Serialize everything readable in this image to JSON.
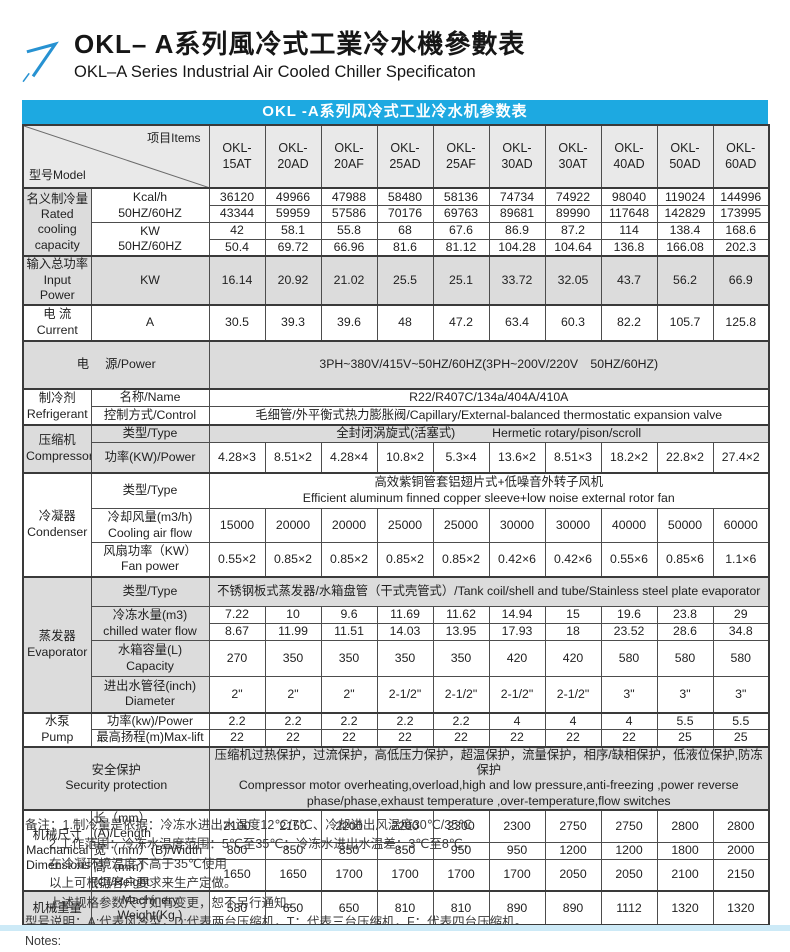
{
  "page": {
    "title_zh": "OKL– A系列風冷式工業冷水機參數表",
    "title_en": "OKL–A Series Industrial Air Cooled Chiller Specificaton",
    "accent_blue": "#1da9e1",
    "gray_cell": "#dcdcdc"
  },
  "table": {
    "caption": "OKL -A系列风冷式工业冷水机参数表",
    "corner": {
      "model": "型号Model",
      "items": "项目Items"
    },
    "models": [
      "OKL-\n15AT",
      "OKL-\n20AD",
      "OKL-\n20AF",
      "OKL-\n25AD",
      "OKL-\n25AF",
      "OKL-\n30AD",
      "OKL-\n30AT",
      "OKL-\n40AD",
      "OKL-\n50AD",
      "OKL-\n60AD"
    ],
    "rows": {
      "rated": {
        "label": "名义制冷量\nRated\ncooling\ncapacity",
        "kcal_label": "Kcal/h\n50HZ/60HZ",
        "kcal_50": [
          "36120",
          "49966",
          "47988",
          "58480",
          "58136",
          "74734",
          "74922",
          "98040",
          "119024",
          "144996"
        ],
        "kcal_60": [
          "43344",
          "59959",
          "57586",
          "70176",
          "69763",
          "89681",
          "89990",
          "117648",
          "142829",
          "173995"
        ],
        "kw_label": "KW\n50HZ/60HZ",
        "kw_50": [
          "42",
          "58.1",
          "55.8",
          "68",
          "67.6",
          "86.9",
          "87.2",
          "114",
          "138.4",
          "168.6"
        ],
        "kw_60": [
          "50.4",
          "69.72",
          "66.96",
          "81.6",
          "81.12",
          "104.28",
          "104.64",
          "136.8",
          "166.08",
          "202.3"
        ]
      },
      "input_power": {
        "label": "输入总功率\nInput Power",
        "unit": "KW",
        "values": [
          "16.14",
          "20.92",
          "21.02",
          "25.5",
          "25.1",
          "33.72",
          "32.05",
          "43.7",
          "56.2",
          "66.9"
        ]
      },
      "current": {
        "label": "电 流\nCurrent",
        "unit": "A",
        "values": [
          "30.5",
          "39.3",
          "39.6",
          "48",
          "47.2",
          "63.4",
          "60.3",
          "82.2",
          "105.7",
          "125.8"
        ]
      },
      "power_supply": {
        "label_zh": "电",
        "label_en": "源/Power",
        "value": "3PH~380V/415V~50HZ/60HZ(3PH~200V/220V　50HZ/60HZ)"
      },
      "refrigerant": {
        "label": "制冷剂\nRefrigerant",
        "name_label": "名称/Name",
        "name_value": "R22/R407C/134a/404A/410A",
        "control_label": "控制方式/Control",
        "control_value": "毛细管/外平衡式热力膨胀阀/Capillary/External-balanced thermostatic expansion valve"
      },
      "compressor": {
        "label": "压缩机\nCompressor",
        "type_label": "类型/Type",
        "type_value": "全封闭涡旋式(活塞式)　　　Hermetic rotary/pison/scroll",
        "power_label": "功率(KW)/Power",
        "power_values": [
          "4.28×3",
          "8.51×2",
          "4.28×4",
          "10.8×2",
          "5.3×4",
          "13.6×2",
          "8.51×3",
          "18.2×2",
          "22.8×2",
          "27.4×2"
        ]
      },
      "condenser": {
        "label": "冷凝器\nCondenser",
        "type_label": "类型/Type",
        "type_value": "高效紫铜管套铝翅片式+低噪音外转子风机\nEfficient aluminum finned copper sleeve+low noise external rotor fan",
        "airflow_label": "冷却风量(m3/h)\nCooling air flow",
        "airflow_values": [
          "15000",
          "20000",
          "20000",
          "25000",
          "25000",
          "30000",
          "30000",
          "40000",
          "50000",
          "60000"
        ],
        "fan_label": "风扇功率（KW）\nFan power",
        "fan_values": [
          "0.55×2",
          "0.85×2",
          "0.85×2",
          "0.85×2",
          "0.85×2",
          "0.42×6",
          "0.42×6",
          "0.55×6",
          "0.85×6",
          "1.1×6"
        ]
      },
      "evaporator": {
        "label": "蒸发器\nEvaporator",
        "type_label": "类型/Type",
        "type_value": "不锈钢板式蒸发器/水箱盘管（干式壳管式）/Tank coil/shell and tube/Stainless steel plate evaporator",
        "water_label": "冷冻水量(m3)\nchilled water flow",
        "water_50": [
          "7.22",
          "10",
          "9.6",
          "11.69",
          "11.62",
          "14.94",
          "15",
          "19.6",
          "23.8",
          "29"
        ],
        "water_60": [
          "8.67",
          "11.99",
          "11.51",
          "14.03",
          "13.95",
          "17.93",
          "18",
          "23.52",
          "28.6",
          "34.8"
        ],
        "capacity_label": "水箱容量(L)\nCapacity",
        "capacity_values": [
          "270",
          "350",
          "350",
          "350",
          "350",
          "420",
          "420",
          "580",
          "580",
          "580"
        ],
        "diameter_label": "进出水管径(inch)\nDiameter",
        "diameter_values": [
          "2\"",
          "2\"",
          "2\"",
          "2-1/2\"",
          "2-1/2\"",
          "2-1/2\"",
          "2-1/2\"",
          "3\"",
          "3\"",
          "3\""
        ]
      },
      "pump": {
        "label": "水泵\nPump",
        "power_label": "功率(kw)/Power",
        "power_values": [
          "2.2",
          "2.2",
          "2.2",
          "2.2",
          "2.2",
          "4",
          "4",
          "4",
          "5.5",
          "5.5"
        ],
        "lift_label": "最高扬程(m)Max-lift",
        "lift_values": [
          "22",
          "22",
          "22",
          "22",
          "22",
          "22",
          "22",
          "22",
          "25",
          "25"
        ]
      },
      "security": {
        "label": "安全保护\nSecurity protection",
        "value": "压缩机过热保护，过流保护，高低压力保护，超温保护，流量保护，相序/缺相保护，低液位保护,防冻保护\nCompressor motor overheating,overload,high and low pressure,anti-freezing ,power reverse\nphase/phase,exhaust temperature ,over-temperature,flow switches"
      },
      "dimensions": {
        "label": "机械尺寸\nMachanical\nDimensions",
        "length_label": "长（mm）(A)/Length",
        "length_values": [
          "2100",
          "2150",
          "2200",
          "2200",
          "2300",
          "2300",
          "2750",
          "2750",
          "2800",
          "2800"
        ],
        "width_label": "宽（mm）(B)/Width",
        "width_values": [
          "800",
          "850",
          "850",
          "850",
          "950",
          "950",
          "1200",
          "1200",
          "1800",
          "2000"
        ],
        "height_label": "高（mm）(C)/Height",
        "height_values": [
          "1650",
          "1650",
          "1700",
          "1700",
          "1700",
          "1700",
          "2050",
          "2050",
          "2100",
          "2150"
        ]
      },
      "weight": {
        "label": "机械重量",
        "unit_label": "Machinery\nWeight(Kg )",
        "values": [
          "580",
          "650",
          "650",
          "810",
          "810",
          "890",
          "890",
          "1112",
          "1320",
          "1320"
        ]
      }
    }
  },
  "notes": {
    "lines": [
      "备注：1.制冷量是依据：冷冻水进出水温度12℃/7℃、冷却进出风温度30℃/35℃",
      "2.工作范围：冷冻水温度范围：5℃至35℃；冷冻水进出水温差：3℃至8℃，",
      "在冷凝环境温度不高于35℃使用",
      "以上可根据客户要求来生产定做。",
      "上述规格参数尺寸如有变更，恕不另行通知。",
      "型号说明：A:代表风冷型，D:代表两台压缩机，T：代表三台压缩机，F：代表四台压缩机。",
      "Notes:"
    ]
  }
}
